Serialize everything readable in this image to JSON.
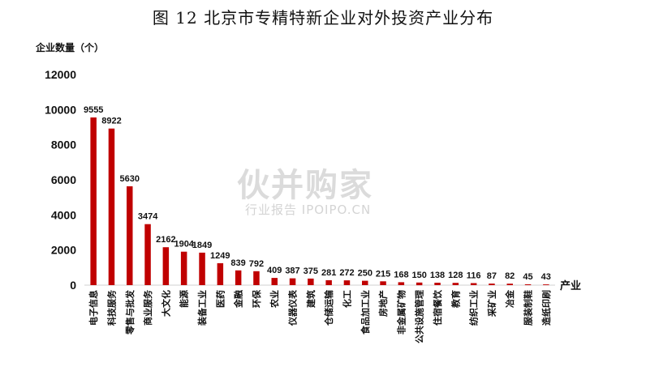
{
  "title": "图 12  北京市专精特新企业对外投资产业分布",
  "watermark": {
    "logo": "伙并购家",
    "subtitle": "行业报告 IPOIPO.CN"
  },
  "colors": {
    "bar": "#c00000",
    "axis": "#d0d0d0",
    "text": "#111111"
  },
  "chart_data": {
    "type": "bar",
    "title": "图 12  北京市专精特新企业对外投资产业分布",
    "ylabel": "企业数量（个）",
    "xlabel": "产业",
    "ylim": [
      0,
      12000
    ],
    "yticks": [
      0,
      2000,
      4000,
      6000,
      8000,
      10000,
      12000
    ],
    "grid": false,
    "categories": [
      "电子信息",
      "科技服务",
      "零售与批发",
      "商业服务",
      "大文化",
      "能源",
      "装备工业",
      "医药",
      "金融",
      "环保",
      "农业",
      "仪器仪表",
      "建筑",
      "仓储运输",
      "化工",
      "食品加工业",
      "房地产",
      "非金属矿物",
      "公共设施管理",
      "住宿餐饮",
      "教育",
      "纺织工业",
      "采矿业",
      "冶金",
      "服装制鞋",
      "造纸印刷"
    ],
    "values": [
      9555,
      8922,
      5630,
      3474,
      2162,
      1904,
      1849,
      1249,
      839,
      792,
      409,
      387,
      375,
      281,
      272,
      250,
      215,
      168,
      150,
      138,
      128,
      116,
      87,
      82,
      45,
      43
    ]
  }
}
